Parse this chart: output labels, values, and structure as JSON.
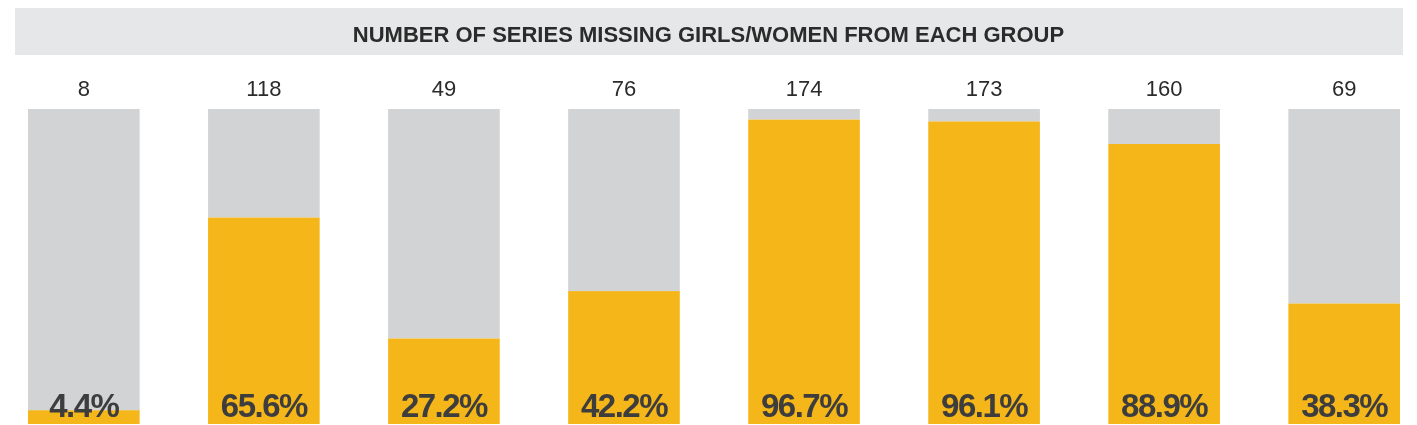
{
  "chart_data": {
    "type": "bar",
    "title": "NUMBER OF SERIES MISSING GIRLS/WOMEN FROM EACH GROUP",
    "categories": [
      null,
      null,
      null,
      null,
      null,
      null,
      null,
      null
    ],
    "stacked": true,
    "ylim": [
      0,
      100
    ],
    "annotations": [
      "8",
      "118",
      "49",
      "76",
      "174",
      "173",
      "160",
      "69"
    ],
    "series": [
      {
        "color": "#f5b619",
        "values": [
          4.4,
          65.6,
          27.2,
          42.2,
          96.7,
          96.1,
          88.9,
          38.3
        ],
        "value_labels": [
          "4.4%",
          "65.6%",
          "27.2%",
          "42.2%",
          "96.7%",
          "96.1%",
          "88.9%",
          "38.3%"
        ]
      },
      {
        "color": "#d1d3d4",
        "values": [
          95.6,
          34.4,
          72.8,
          57.8,
          3.3,
          3.9,
          11.1,
          61.7
        ]
      }
    ]
  }
}
